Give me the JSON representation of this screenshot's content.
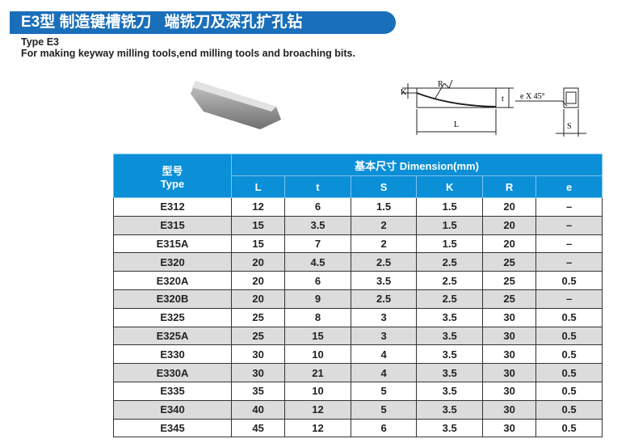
{
  "header": {
    "title": "E3型 制造键槽铣刀   端铣刀及深孔扩孔钻",
    "type_line": "Type E3",
    "description": "For making keyway milling tools,end milling tools and broaching bits."
  },
  "drawing": {
    "labels": {
      "k": "K",
      "r": "R",
      "t": "t",
      "l": "L",
      "e": "e X 45°",
      "s": "S"
    }
  },
  "table": {
    "type_header_cn": "型号",
    "type_header_en": "Type",
    "dimension_header": "基本尺寸  Dimension(mm)",
    "columns": [
      "L",
      "t",
      "S",
      "K",
      "R",
      "e"
    ],
    "rows": [
      [
        "E312",
        "12",
        "6",
        "1.5",
        "1.5",
        "20",
        "–"
      ],
      [
        "E315",
        "15",
        "3.5",
        "2",
        "1.5",
        "20",
        "–"
      ],
      [
        "E315A",
        "15",
        "7",
        "2",
        "1.5",
        "20",
        "–"
      ],
      [
        "E320",
        "20",
        "4.5",
        "2.5",
        "2.5",
        "25",
        "–"
      ],
      [
        "E320A",
        "20",
        "6",
        "3.5",
        "2.5",
        "25",
        "0.5"
      ],
      [
        "E320B",
        "20",
        "9",
        "2.5",
        "2.5",
        "25",
        "–"
      ],
      [
        "E325",
        "25",
        "8",
        "3",
        "3.5",
        "30",
        "0.5"
      ],
      [
        "E325A",
        "25",
        "15",
        "3",
        "3.5",
        "30",
        "0.5"
      ],
      [
        "E330",
        "30",
        "10",
        "4",
        "3.5",
        "30",
        "0.5"
      ],
      [
        "E330A",
        "30",
        "21",
        "4",
        "3.5",
        "30",
        "0.5"
      ],
      [
        "E335",
        "35",
        "10",
        "5",
        "3.5",
        "30",
        "0.5"
      ],
      [
        "E340",
        "40",
        "12",
        "5",
        "3.5",
        "30",
        "0.5"
      ],
      [
        "E345",
        "45",
        "12",
        "6",
        "3.5",
        "30",
        "0.5"
      ]
    ]
  }
}
